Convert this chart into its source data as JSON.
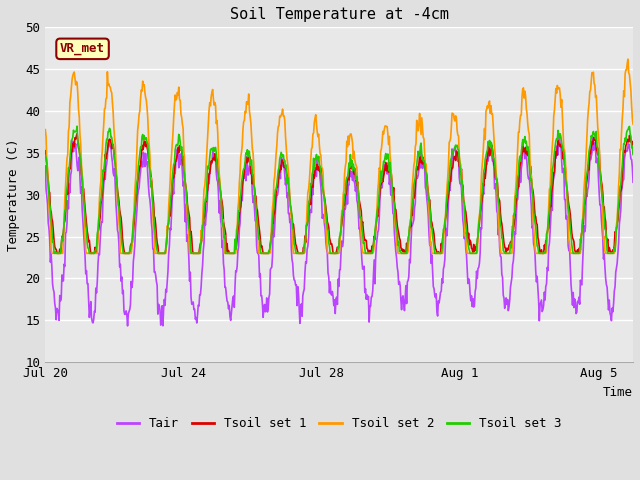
{
  "title": "Soil Temperature at -4cm",
  "xlabel": "Time",
  "ylabel": "Temperature (C)",
  "ylim": [
    10,
    50
  ],
  "colors": {
    "Tair": "#bb44ff",
    "Tsoil1": "#dd0000",
    "Tsoil2": "#ff9900",
    "Tsoil3": "#22cc00"
  },
  "legend_labels": [
    "Tair",
    "Tsoil set 1",
    "Tsoil set 2",
    "Tsoil set 3"
  ],
  "xtick_labels": [
    "Jul 20",
    "Jul 24",
    "Jul 28",
    "Aug 1",
    "Aug 5"
  ],
  "ytick_positions": [
    10,
    15,
    20,
    25,
    30,
    35,
    40,
    45,
    50
  ],
  "fig_bg_color": "#e0e0e0",
  "plot_bg_color": "#e8e8e8",
  "grid_color": "#ffffff",
  "annotation": "VR_met",
  "annot_fg": "#8b0000",
  "annot_bg": "#ffffbb",
  "n_points": 816
}
